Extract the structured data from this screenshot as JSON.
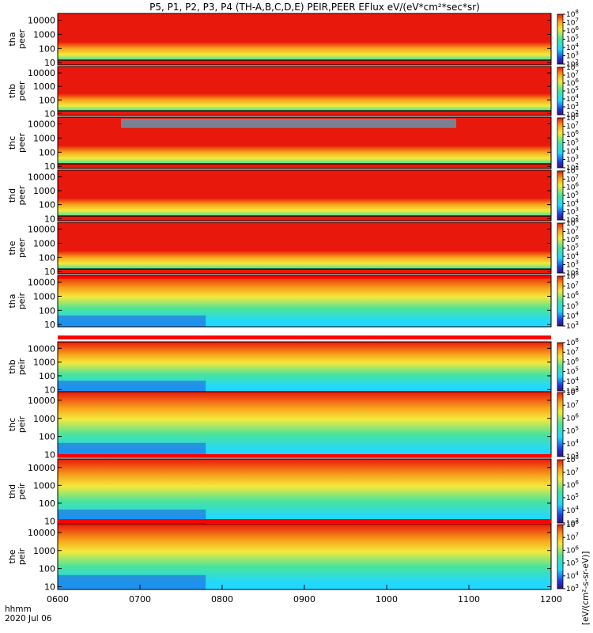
{
  "title": "P5, P1, P2, P3, P4 (TH-A,B,C,D,E) PEIR,PEER EFlux eV/(eV*cm²*sec*sr)",
  "colors": {
    "red": "#e8180c",
    "orange": "#f7a21b",
    "yellow": "#f5e93c",
    "green": "#49e39b",
    "cyan": "#22d8ff",
    "blue": "#1b3cdc",
    "black": "#000000",
    "flag_yellow": "#ffff00",
    "flag_red": "#ff0000"
  },
  "chart_data": {
    "type": "heatmap",
    "title": "P5, P1, P2, P3, P4 (TH-A,B,C,D,E) PEIR,PEER EFlux eV/(eV*cm²*sec*sr)",
    "x_label_line1": "hhmm",
    "x_label_line2": "2020 Jul 06",
    "x_range": [
      "0600",
      "1200"
    ],
    "x_ticks": [
      "0600",
      "0700",
      "0800",
      "0900",
      "1000",
      "1100",
      "1200"
    ],
    "y_scale": "log",
    "y_range": [
      7,
      30000
    ],
    "y_ticks": [
      "10",
      "100",
      "1000",
      "10000"
    ],
    "colorbar_label": "[eV/(cm²-s-sr-eV)]",
    "panels": [
      {
        "ylabel": "tha peer",
        "type": "electron",
        "cb": [
          2,
          8
        ]
      },
      {
        "ylabel": "thb peer",
        "type": "electron",
        "cb": [
          2,
          8
        ]
      },
      {
        "ylabel": "thc peer",
        "type": "electron",
        "cb": [
          2,
          8
        ]
      },
      {
        "ylabel": "thd peer",
        "type": "electron",
        "cb": [
          2,
          8
        ]
      },
      {
        "ylabel": "the peer",
        "type": "electron",
        "cb": [
          2,
          8
        ]
      },
      {
        "ylabel": "tha peir",
        "type": "ion",
        "cb": [
          3,
          8
        ]
      },
      {
        "ylabel": "thb peir",
        "type": "ion",
        "cb": [
          3,
          8
        ]
      },
      {
        "ylabel": "thc peir",
        "type": "ion",
        "cb": [
          3,
          8
        ]
      },
      {
        "ylabel": "thd peir",
        "type": "ion",
        "cb": [
          3,
          8
        ]
      },
      {
        "ylabel": "the peir",
        "type": "ion",
        "cb": [
          3,
          8
        ]
      }
    ]
  }
}
